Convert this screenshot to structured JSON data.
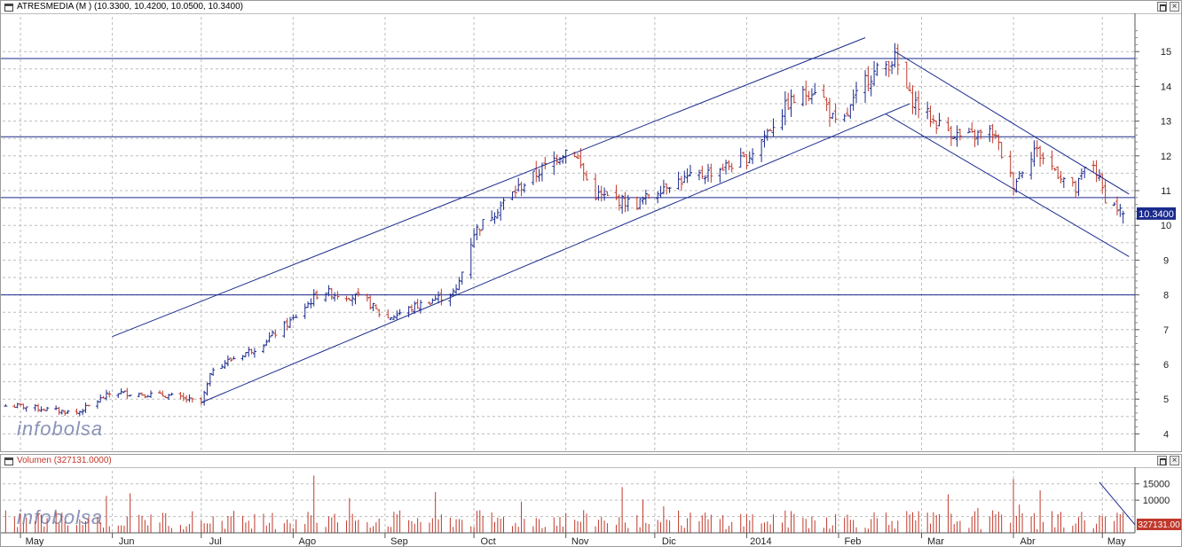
{
  "price_panel": {
    "title": "ATRESMEDIA (M ) (10.3300, 10.4200, 10.0500, 10.3400)",
    "last_price_label": "10.3400",
    "watermark": "infobolsa",
    "y_ticks": [
      "4",
      "5",
      "6",
      "7",
      "8",
      "9",
      "10",
      "11",
      "12",
      "13",
      "14",
      "15"
    ]
  },
  "volume_panel": {
    "title": "Volumen (327131.0000)",
    "last_volume_label": "327131.00",
    "watermark": "infobolsa",
    "y_ticks": [
      "10000",
      "15000"
    ]
  },
  "x_axis": {
    "labels": [
      "May",
      "Jun",
      "Jul",
      "Ago",
      "Sep",
      "Oct",
      "Nov",
      "Dic",
      "2014",
      "Feb",
      "Mar",
      "Abr",
      "May"
    ]
  },
  "colors": {
    "up_bar": "#1a2a8c",
    "down_bar": "#c0392b",
    "trendline": "#1a2a8c",
    "volume_bar": "#c0392b",
    "grid": "#bdbdbd",
    "price_marker_bg": "#1a2a8c"
  },
  "chart_data": {
    "type": "ohlc",
    "title": "ATRESMEDIA (M ) (10.3300, 10.4200, 10.0500, 10.3400)",
    "last": {
      "open": 10.33,
      "high": 10.42,
      "low": 10.05,
      "close": 10.34
    },
    "x_range": [
      "May 2013",
      "May 2014"
    ],
    "ylim": [
      3.5,
      16
    ],
    "grid": true,
    "close_path_points": [
      {
        "date": "2013-05-01",
        "close": 4.8
      },
      {
        "date": "2013-05-20",
        "close": 4.6
      },
      {
        "date": "2013-06-01",
        "close": 5.2
      },
      {
        "date": "2013-06-20",
        "close": 5.1
      },
      {
        "date": "2013-07-01",
        "close": 4.9
      },
      {
        "date": "2013-07-05",
        "close": 5.9
      },
      {
        "date": "2013-07-20",
        "close": 6.5
      },
      {
        "date": "2013-08-01",
        "close": 7.3
      },
      {
        "date": "2013-08-10",
        "close": 8.1
      },
      {
        "date": "2013-08-25",
        "close": 7.9
      },
      {
        "date": "2013-09-01",
        "close": 7.3
      },
      {
        "date": "2013-09-15",
        "close": 7.8
      },
      {
        "date": "2013-09-25",
        "close": 8.1
      },
      {
        "date": "2013-10-01",
        "close": 9.8
      },
      {
        "date": "2013-10-15",
        "close": 11.0
      },
      {
        "date": "2013-10-28",
        "close": 11.9
      },
      {
        "date": "2013-11-03",
        "close": 12.3
      },
      {
        "date": "2013-11-10",
        "close": 10.9
      },
      {
        "date": "2013-11-25",
        "close": 10.6
      },
      {
        "date": "2013-12-05",
        "close": 11.2
      },
      {
        "date": "2013-12-15",
        "close": 11.4
      },
      {
        "date": "2014-01-01",
        "close": 11.9
      },
      {
        "date": "2014-01-15",
        "close": 13.5
      },
      {
        "date": "2014-01-25",
        "close": 14.0
      },
      {
        "date": "2014-02-01",
        "close": 12.7
      },
      {
        "date": "2014-02-10",
        "close": 14.2
      },
      {
        "date": "2014-02-20",
        "close": 14.8
      },
      {
        "date": "2014-02-25",
        "close": 13.7
      },
      {
        "date": "2014-03-05",
        "close": 13.0
      },
      {
        "date": "2014-03-15",
        "close": 12.5
      },
      {
        "date": "2014-03-25",
        "close": 12.7
      },
      {
        "date": "2014-04-01",
        "close": 11.2
      },
      {
        "date": "2014-04-08",
        "close": 12.2
      },
      {
        "date": "2014-04-15",
        "close": 11.6
      },
      {
        "date": "2014-04-22",
        "close": 11.0
      },
      {
        "date": "2014-04-27",
        "close": 12.0
      },
      {
        "date": "2014-05-02",
        "close": 10.8
      },
      {
        "date": "2014-05-08",
        "close": 10.34
      }
    ],
    "horizontal_levels": [
      14.8,
      12.55,
      10.8,
      8.0
    ],
    "trendlines": [
      {
        "name": "upper-channel",
        "from": {
          "date": "2013-06-01",
          "value": 6.8
        },
        "to": {
          "date": "2014-02-10",
          "value": 15.4
        }
      },
      {
        "name": "lower-channel",
        "from": {
          "date": "2013-07-01",
          "value": 4.9
        },
        "to": {
          "date": "2014-02-25",
          "value": 13.5
        }
      },
      {
        "name": "down-upper",
        "from": {
          "date": "2014-02-20",
          "value": 15.0
        },
        "to": {
          "date": "2014-05-10",
          "value": 10.9
        }
      },
      {
        "name": "down-lower",
        "from": {
          "date": "2014-02-17",
          "value": 13.2
        },
        "to": {
          "date": "2014-05-10",
          "value": 9.1
        }
      }
    ],
    "volume": {
      "ylim": [
        0,
        19000
      ],
      "last": 327131,
      "peaks": [
        {
          "date": "2013-06-30",
          "value": 16000
        },
        {
          "date": "2013-08-08",
          "value": 17500
        },
        {
          "date": "2013-11-20",
          "value": 14000
        },
        {
          "date": "2014-04-01",
          "value": 16500
        },
        {
          "date": "2014-04-10",
          "value": 13000
        }
      ],
      "typical": 4500
    }
  }
}
